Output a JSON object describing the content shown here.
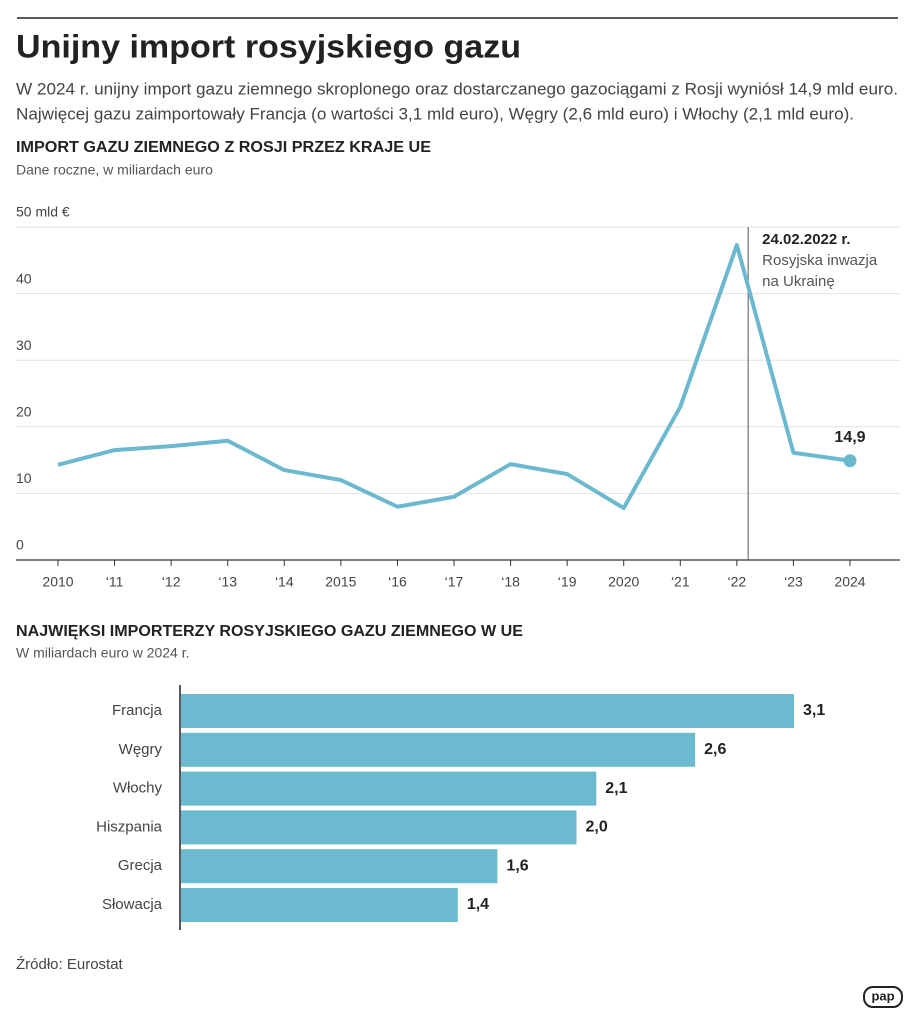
{
  "title": "Unijny import rosyjskiego gazu",
  "description": [
    "W 2024 r. unijny import gazu ziemnego skroplonego oraz dostarczanego gazociągami z Rosji wyniósł 14,9 mld euro.",
    "Najwięcej gazu zaimportowały Francja (o wartości 3,1 mld euro), Węgry (2,6 mld euro) i Włochy (2,1 mld euro)."
  ],
  "chart_data": [
    {
      "type": "line",
      "title": "IMPORT GAZU ZIEMNEGO Z ROSJI PRZEZ KRAJE UE",
      "subtitle": "Dane roczne, w miliardach euro",
      "categories": [
        "2010",
        "‘11",
        "‘12",
        "‘13",
        "‘14",
        "2015",
        "‘16",
        "‘17",
        "‘18",
        "‘19",
        "2020",
        "‘21",
        "‘22",
        "‘23",
        "2024"
      ],
      "values": [
        14.3,
        16.5,
        17.1,
        17.9,
        13.5,
        12.0,
        8.0,
        9.5,
        14.4,
        12.9,
        7.8,
        23.0,
        47.3,
        16.1,
        14.9
      ],
      "value_labels": [
        null,
        null,
        null,
        null,
        null,
        null,
        null,
        null,
        null,
        null,
        null,
        null,
        null,
        null,
        "14,9"
      ],
      "color": "#6cb8cf",
      "ylim": [
        0,
        50
      ],
      "yticks": [
        0,
        10,
        20,
        30,
        40,
        {
          "value": 50,
          "label": "50 mld €"
        }
      ],
      "grid": true,
      "annotation": {
        "label": "24.02.2022 r.",
        "text": [
          "Rosyjska inwazja",
          "na Ukrainę"
        ]
      }
    },
    {
      "type": "hbar",
      "title": "NAJWIĘKSI IMPORTERZY ROSYJSKIEGO GAZU ZIEMNEGO W UE",
      "subtitle": "W miliardach euro w 2024 r.",
      "categories": [
        "Francja",
        "Węgry",
        "Włochy",
        "Hiszpania",
        "Grecja",
        "Słowacja"
      ],
      "values": [
        3.1,
        2.6,
        2.1,
        2.0,
        1.6,
        1.4
      ],
      "value_labels": [
        "3,1",
        "2,6",
        "2,1",
        "2,0",
        "1,6",
        "1,4"
      ],
      "color": "#6cbacf",
      "xlim": [
        0,
        3.1
      ]
    }
  ],
  "source": "Źródło: Eurostat",
  "logo": "pap"
}
